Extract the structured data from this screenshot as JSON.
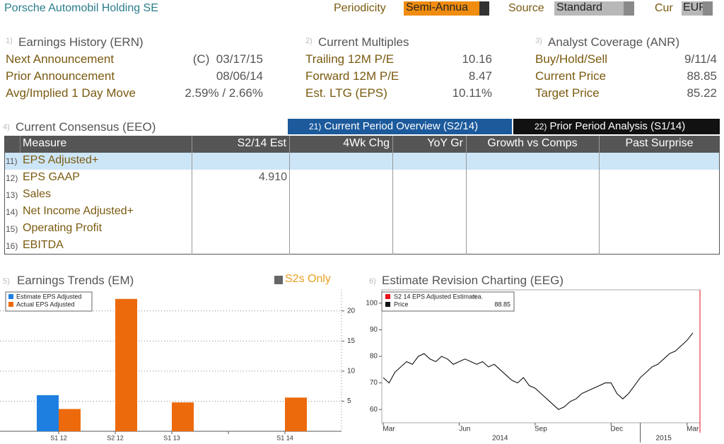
{
  "header": {
    "title": "Porsche Automobil Holding SE",
    "periodicity_label": "Periodicity",
    "periodicity": "Semi-Annua",
    "source_label": "Source",
    "source": "Standard",
    "cur_label": "Cur",
    "cur": "EUR"
  },
  "sections": [
    {
      "number": "1)",
      "title": "Earnings History (ERN)",
      "rows": [
        [
          "Next Announcement",
          "(C)  03/17/15"
        ],
        [
          "Prior Announcement",
          "08/06/14"
        ],
        [
          "Avg/Implied 1 Day Move",
          "2.59% / 2.66%"
        ]
      ]
    },
    {
      "number": "2)",
      "title": "Current Multiples",
      "rows": [
        [
          "Trailing 12M P/E",
          "10.16"
        ],
        [
          "Forward 12M P/E",
          "8.47"
        ],
        [
          "Est. LTG (EPS)",
          "10.11%"
        ]
      ]
    },
    {
      "number": "3)",
      "title": "Analyst Coverage (ANR)",
      "rows": [
        [
          "Buy/Hold/Sell",
          "9/11/4"
        ],
        [
          "Current Price",
          "88.85"
        ],
        [
          "Target Price",
          "85.22"
        ]
      ]
    }
  ],
  "consensus": {
    "number": "4)",
    "title": "Current Consensus (EEO)",
    "tabs": [
      {
        "number": "21)",
        "label": "Current Period Overview (S2/14)"
      },
      {
        "number": "22)",
        "label": "Prior Period Analysis (S1/14)"
      }
    ],
    "columns": [
      "Measure",
      "S2/14 Est",
      "4Wk Chg",
      "YoY Gr",
      "Growth vs Comps",
      "Past Surprise"
    ],
    "rows": [
      {
        "number": "11)",
        "measure": "EPS Adjusted+"
      },
      {
        "number": "12)",
        "measure": "EPS GAAP",
        "est": "4.910"
      },
      {
        "number": "13)",
        "measure": "Sales"
      },
      {
        "number": "14)",
        "measure": "Net Income Adjusted+"
      },
      {
        "number": "15)",
        "measure": "Operating Profit"
      },
      {
        "number": "16)",
        "measure": "EBITDA"
      }
    ]
  },
  "s2s_only": "S2s Only",
  "chart_data": [
    {
      "type": "bar",
      "number": "5)",
      "title": "Earnings Trends (EM)",
      "categories": [
        "S1 12",
        "S2 12",
        "S1 13",
        null,
        "S1 14"
      ],
      "series": [
        {
          "name": "Estimate EPS Adjusted",
          "color": "#1e7fe0",
          "values": [
            6.0,
            null,
            null,
            null,
            null
          ]
        },
        {
          "name": "Actual EPS Adjusted",
          "color": "#ec6a0c",
          "values": [
            3.7,
            22.0,
            4.8,
            null,
            5.6
          ]
        }
      ],
      "ylim": [
        0,
        23.5
      ],
      "yticks": [
        5,
        10,
        15,
        20
      ],
      "grid": true
    },
    {
      "type": "line",
      "number": "6)",
      "title": "Estimate Revision Charting (EEG)",
      "estimate": {
        "name": "S2 14 EPS Adjusted Estimate",
        "color": "#e8101c",
        "value_label": "n.a."
      },
      "categories": [
        "Mar",
        null,
        null,
        null,
        null,
        null,
        null,
        null,
        null,
        null,
        null,
        null,
        null,
        "Jun",
        null,
        null,
        null,
        null,
        null,
        null,
        null,
        null,
        null,
        null,
        null,
        null,
        "Sep",
        null,
        null,
        null,
        null,
        null,
        null,
        null,
        null,
        null,
        null,
        null,
        null,
        "Dec",
        null,
        null,
        null,
        null,
        null,
        null,
        null,
        null,
        null,
        null,
        null,
        null,
        "Mar",
        null
      ],
      "years": [
        "2014",
        "2015"
      ],
      "series": [
        {
          "name": "Price",
          "color": "#111111",
          "last_label": "88.85",
          "values": [
            72,
            70,
            74,
            76,
            78,
            77,
            80,
            81,
            79,
            78,
            80,
            79,
            77,
            78,
            79,
            78,
            77,
            78,
            76,
            77,
            75,
            73,
            71,
            70,
            72,
            69,
            68,
            66,
            64,
            62,
            60,
            61,
            63,
            64,
            66,
            67,
            68,
            69,
            70,
            70,
            66,
            64,
            66,
            69,
            72,
            74,
            76,
            77,
            79,
            81,
            82,
            84,
            86,
            88.85
          ]
        }
      ],
      "ylim": [
        55,
        105
      ],
      "yticks": [
        60,
        70,
        80,
        90,
        100
      ],
      "grid": false
    }
  ]
}
